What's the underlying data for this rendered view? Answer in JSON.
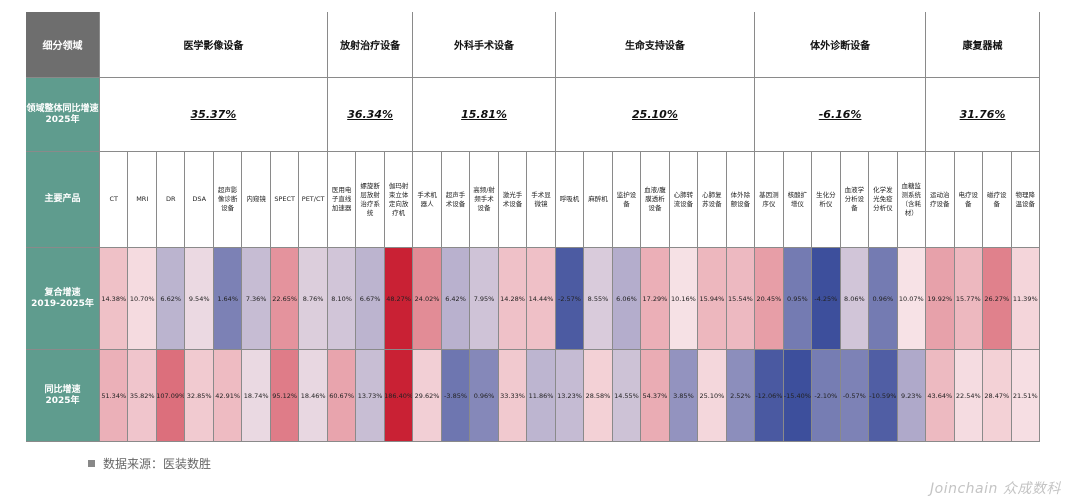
{
  "chart_data": {
    "type": "table",
    "row_labels": {
      "domain": "细分领域",
      "growth": "领域整体同比增速\n2025年",
      "products": "主要产品",
      "cagr": "复合增速\n2019-2025年",
      "yoy": "同比增速\n2025年"
    },
    "domains": [
      {
        "name": "医学影像设备",
        "growth": "35.37%",
        "span": 8
      },
      {
        "name": "放射治疗设备",
        "growth": "36.34%",
        "span": 3
      },
      {
        "name": "外科手术设备",
        "growth": "15.81%",
        "span": 5
      },
      {
        "name": "生命支持设备",
        "growth": "25.10%",
        "span": 7
      },
      {
        "name": "体外诊断设备",
        "growth": "-6.16%",
        "span": 6
      },
      {
        "name": "康复器械",
        "growth": "31.76%",
        "span": 4
      }
    ],
    "products": [
      "CT",
      "MRI",
      "DR",
      "DSA",
      "超声影像诊断设备",
      "内窥镜",
      "SPECT",
      "PET/CT",
      "医用电子直线加速器",
      "螺旋断层放射治疗系统",
      "伽玛射束立体定向放疗机",
      "手术机器人",
      "超声手术设备",
      "高频/射频手术设备",
      "激光手术设备",
      "手术显微镜",
      "呼吸机",
      "麻醉机",
      "监护设备",
      "血液/腹膜透析设备",
      "心肺转流设备",
      "心肺复苏设备",
      "体外除颤设备",
      "基因测序仪",
      "核酸扩增仪",
      "生化分析仪",
      "血液学分析设备",
      "化学发光免疫分析仪",
      "血糖监测系统（含耗材）",
      "运动治疗设备",
      "电疗设备",
      "磁疗设备",
      "物理降温设备"
    ],
    "cagr": [
      "14.38%",
      "10.70%",
      "6.62%",
      "9.54%",
      "1.64%",
      "7.36%",
      "22.65%",
      "8.76%",
      "8.10%",
      "6.67%",
      "48.27%",
      "24.02%",
      "6.42%",
      "7.95%",
      "14.28%",
      "14.44%",
      "-2.57%",
      "8.55%",
      "6.06%",
      "17.29%",
      "10.16%",
      "15.94%",
      "15.54%",
      "20.45%",
      "0.95%",
      "-4.25%",
      "8.06%",
      "0.96%",
      "10.07%",
      "19.92%",
      "15.77%",
      "26.27%",
      "11.39%"
    ],
    "yoy": [
      "51.34%",
      "35.82%",
      "107.09%",
      "32.85%",
      "42.91%",
      "18.74%",
      "95.12%",
      "18.46%",
      "60.67%",
      "13.73%",
      "186.40%",
      "29.62%",
      "-3.85%",
      "0.96%",
      "33.33%",
      "11.86%",
      "13.23%",
      "28.58%",
      "14.55%",
      "54.37%",
      "3.85%",
      "25.10%",
      "2.52%",
      "-12.06%",
      "-15.40%",
      "-2.10%",
      "-0.57%",
      "-10.59%",
      "9.23%",
      "43.64%",
      "22.54%",
      "28.47%",
      "21.51%"
    ],
    "colors": {
      "low": "#3d4f9c",
      "mid": "#f7e3e7",
      "high": "#c92134",
      "header_left": "#6e6e6e",
      "row_label": "#5f9c8e"
    }
  },
  "footer": {
    "source": "数据来源：医装数胜",
    "brand": "Joinchain 众成数科"
  }
}
